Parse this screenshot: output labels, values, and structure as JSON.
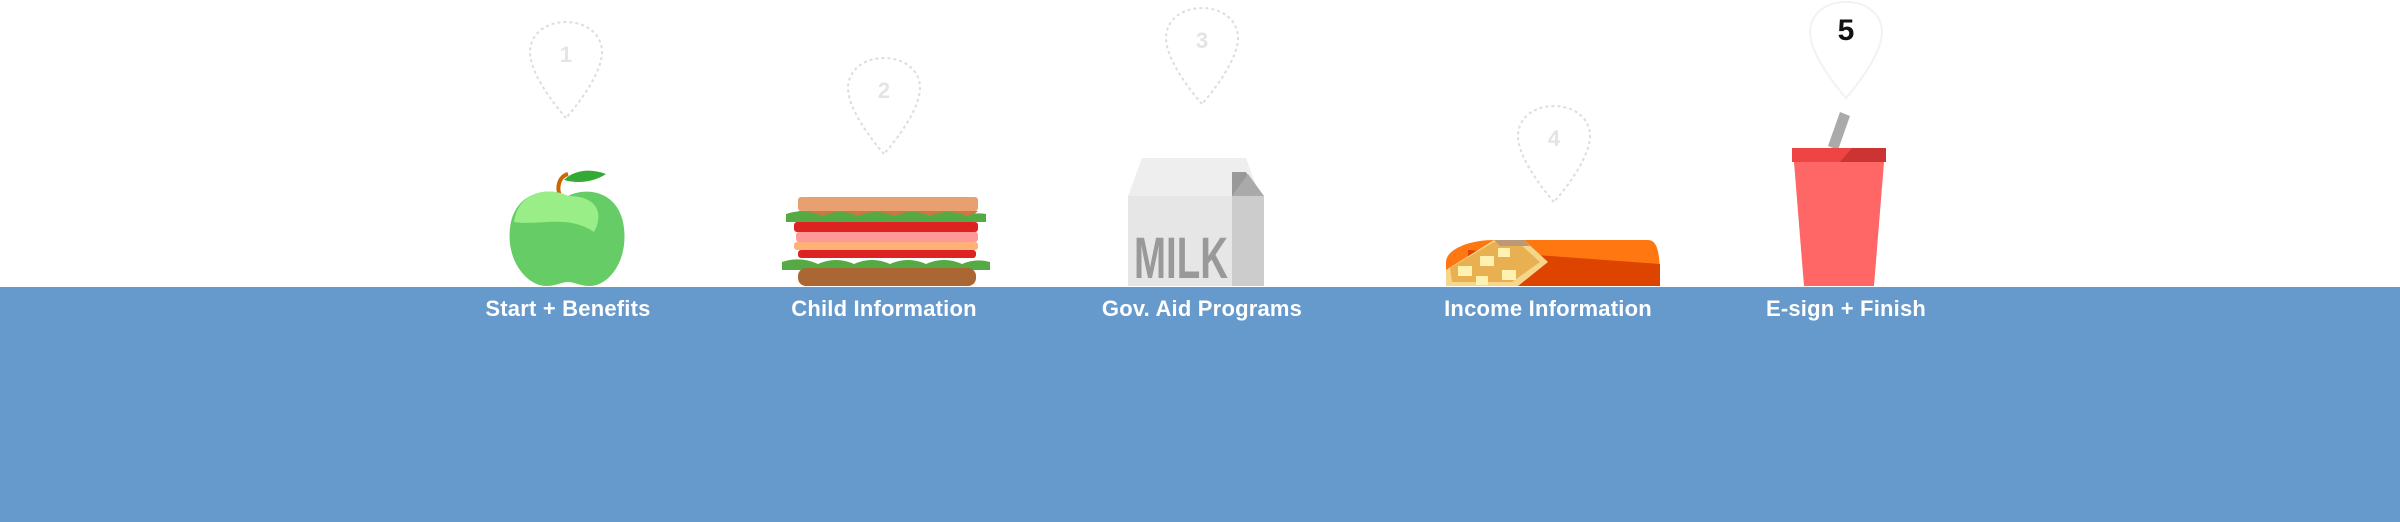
{
  "steps": [
    {
      "number": "1",
      "label": "Start + Benefits",
      "icon": "apple-icon",
      "state": "inactive"
    },
    {
      "number": "2",
      "label": "Child Information",
      "icon": "sandwich-icon",
      "state": "inactive"
    },
    {
      "number": "3",
      "label": "Gov. Aid Programs",
      "icon": "milk-carton-icon",
      "state": "inactive"
    },
    {
      "number": "4",
      "label": "Income Information",
      "icon": "pizza-slice-icon",
      "state": "inactive"
    },
    {
      "number": "5",
      "label": "E-sign + Finish",
      "icon": "drink-cup-icon",
      "state": "active"
    }
  ],
  "milk_text": "MILK",
  "colors": {
    "band": "#6699cc",
    "label": "#ffffff",
    "apple": "#66cc66",
    "cup": "#ff6666",
    "pizza": "#ee5500"
  }
}
